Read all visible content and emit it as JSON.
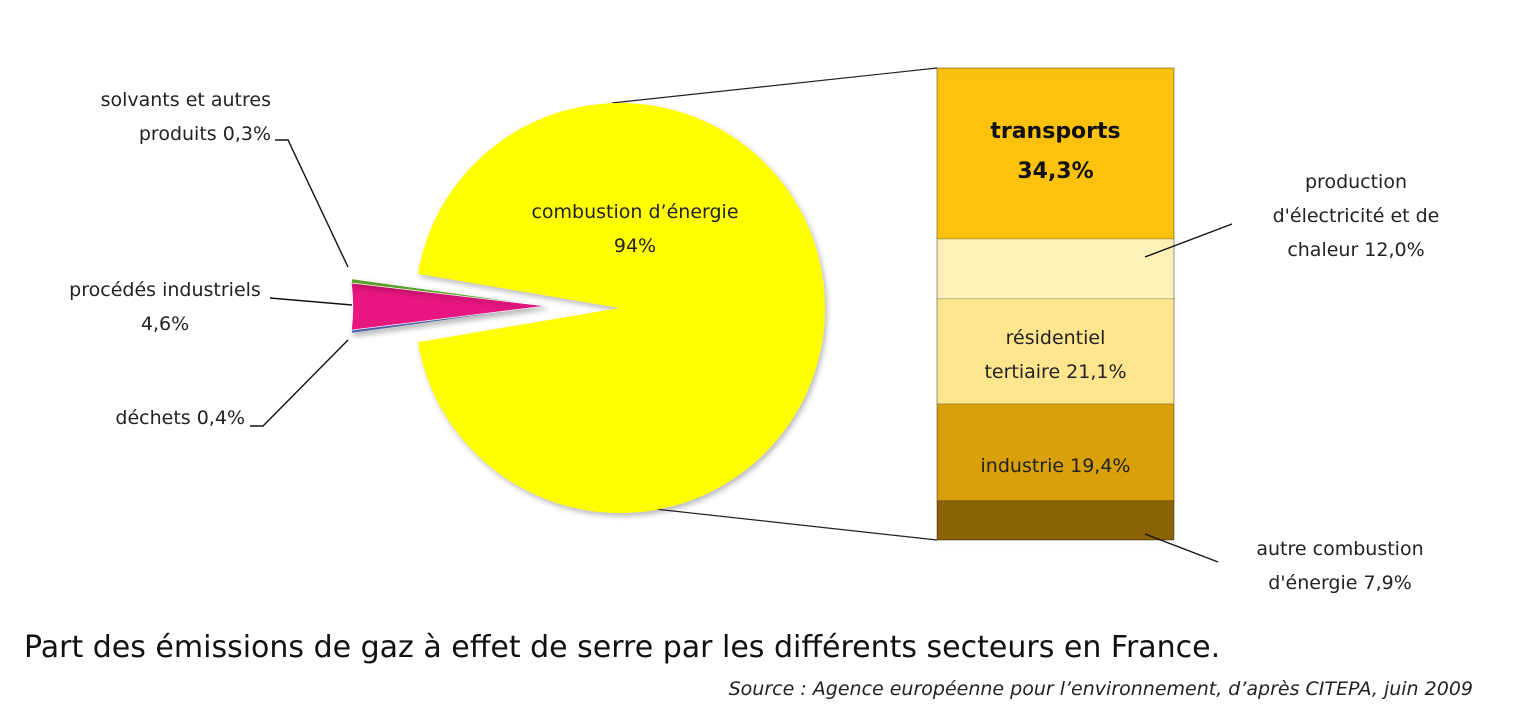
{
  "chart_data": [
    {
      "type": "pie",
      "slices": [
        {
          "label_lines": [
            "combustion d’énergie",
            "94%"
          ],
          "value": 94,
          "color": "#ffff00"
        },
        {
          "label_lines": [
            "solvants et autres",
            "produits 0,3%"
          ],
          "value": 0.3,
          "color": "#5b7bd5"
        },
        {
          "label_lines": [
            "procédés industriels",
            "4,6%"
          ],
          "value": 4.6,
          "color": "#e8197f"
        },
        {
          "label_lines": [
            "déchets 0,4%"
          ],
          "value": 0.4,
          "color": "#5aa02c"
        }
      ]
    },
    {
      "type": "bar",
      "stacked": true,
      "segments": [
        {
          "label_lines": [
            "transports",
            "34,3%"
          ],
          "value": 34.3,
          "color": "#fcc20e",
          "bold": true
        },
        {
          "label_lines": [
            "production",
            "d'électricité et de",
            "chaleur 12,0%"
          ],
          "value": 12.0,
          "color": "#fff0b8"
        },
        {
          "label_lines": [
            "résidentiel",
            "tertiaire 21,1%"
          ],
          "value": 21.1,
          "color": "#fee58e"
        },
        {
          "label_lines": [
            "industrie 19,4%"
          ],
          "value": 19.4,
          "color": "#d9a00a"
        },
        {
          "label_lines": [
            "autre combustion",
            "d'énergie 7,9%"
          ],
          "value": 7.9,
          "color": "#8c6206"
        }
      ]
    }
  ],
  "caption": {
    "title": "Part des émissions de gaz à effet de serre par les différents secteurs en France.",
    "source": "Source : Agence européenne pour l’environnement, d’après CITEPA, juin 2009"
  }
}
